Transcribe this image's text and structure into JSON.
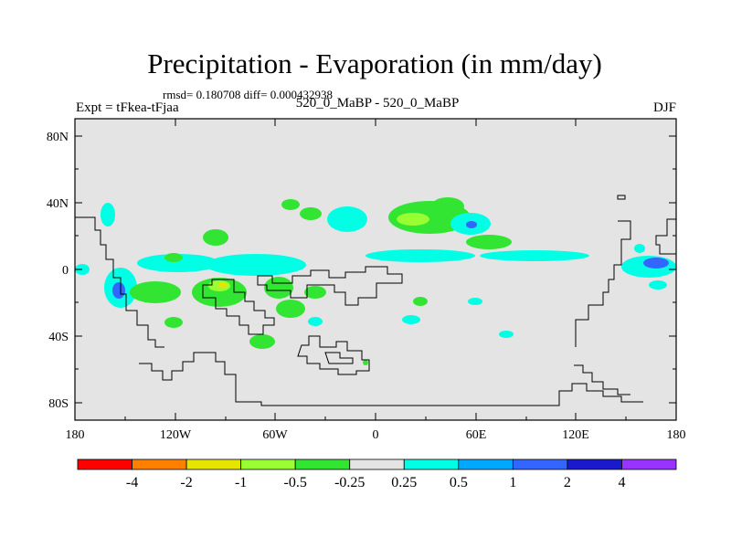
{
  "title": "Precipitation - Evaporation (in mm/day)",
  "stats": "rmsd= 0.180708 diff= 0.000432938",
  "experiment": "Expt = tFkea-tFjaa",
  "case": "520_0_MaBP - 520_0_MaBP",
  "season": "DJF",
  "map": {
    "background_color": "#e4e4e4",
    "lon_ticks": [
      "180",
      "120W",
      "60W",
      "0",
      "60E",
      "120E",
      "180"
    ],
    "lat_ticks": [
      "80N",
      "40N",
      "0",
      "40S",
      "80S"
    ]
  },
  "colorbar": {
    "colors": [
      "#ff0000",
      "#ff8000",
      "#e5e500",
      "#99ff33",
      "#33e533",
      "#e4e4e4",
      "#00ffe5",
      "#00a8ff",
      "#3366ff",
      "#1a1acc",
      "#9933ff"
    ],
    "labels": [
      "-4",
      "-2",
      "-1",
      "-0.5",
      "-0.25",
      "0.25",
      "0.5",
      "1",
      "2",
      "4"
    ]
  }
}
